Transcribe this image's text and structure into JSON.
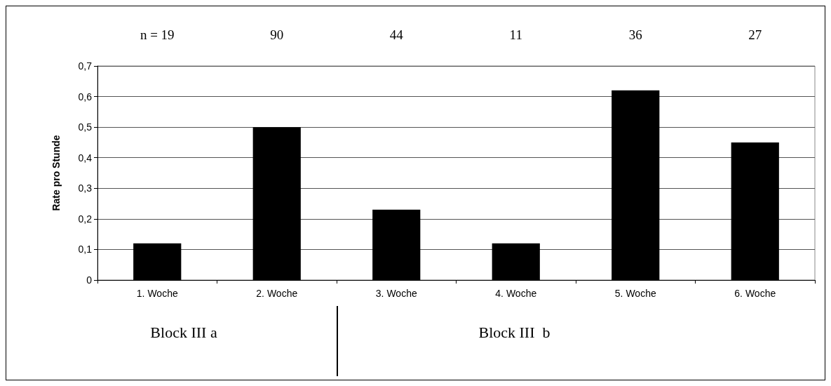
{
  "chart_data": {
    "type": "bar",
    "ylabel": "Rate pro Stunde",
    "categories": [
      "1. Woche",
      "2. Woche",
      "3. Woche",
      "4. Woche",
      "5. Woche",
      "6. Woche"
    ],
    "values": [
      0.12,
      0.5,
      0.23,
      0.12,
      0.62,
      0.45
    ],
    "color": "#000000",
    "ylim": [
      0,
      0.7
    ],
    "yticks": [
      0,
      {
        "value": 0.1,
        "label": "0,1"
      },
      {
        "value": 0.2,
        "label": "0,2"
      },
      {
        "value": 0.3,
        "label": "0,3"
      },
      {
        "value": 0.4,
        "label": "0,4"
      },
      {
        "value": 0.5,
        "label": "0,5"
      },
      {
        "value": 0.6,
        "label": "0,6"
      },
      {
        "value": 0.7,
        "label": "0,7"
      }
    ],
    "grid": "y",
    "annotations": [
      "n = 19",
      "90",
      "44",
      "11",
      "36",
      "27",
      "Block III a",
      "Block III  b"
    ]
  }
}
